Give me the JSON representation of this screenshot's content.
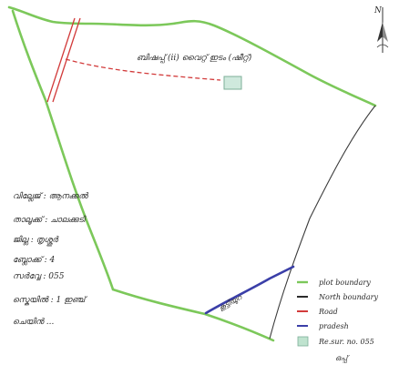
{
  "map": {
    "title_note": "ബിഷപ്പ് (ii) വൈറ്റ് ഇടം (ഷീറ്റ്)",
    "north": "N",
    "legend": {
      "items": [
        {
          "label": "plot boundary",
          "color": "#7cc85a"
        },
        {
          "label": "North boundary",
          "color": "#2b2b2b"
        },
        {
          "label": "Road",
          "color": "#d23b3b"
        },
        {
          "label": "pradesh",
          "color": "#3b3fa8"
        },
        {
          "label": "Re.sur. no. 055",
          "color": "#bfe3cf"
        }
      ]
    },
    "info": {
      "line1": "വില്ലേജ് : ആനക്കൽ",
      "line2": "താലൂക്ക് : ചാലക്കുടി",
      "line3": "ജില്ല : തൃശ്ശൂർ",
      "line4": "ബ്ലോക്ക് : 4",
      "line5": "സർവ്വേ : 055",
      "line6": "സ്കെയിൽ : 1 ഇഞ്ച്",
      "line7": "ചെയിൻ ..."
    },
    "blue_label": "കൂട്ടിയുറ",
    "signature": "ഒപ്പ്"
  }
}
